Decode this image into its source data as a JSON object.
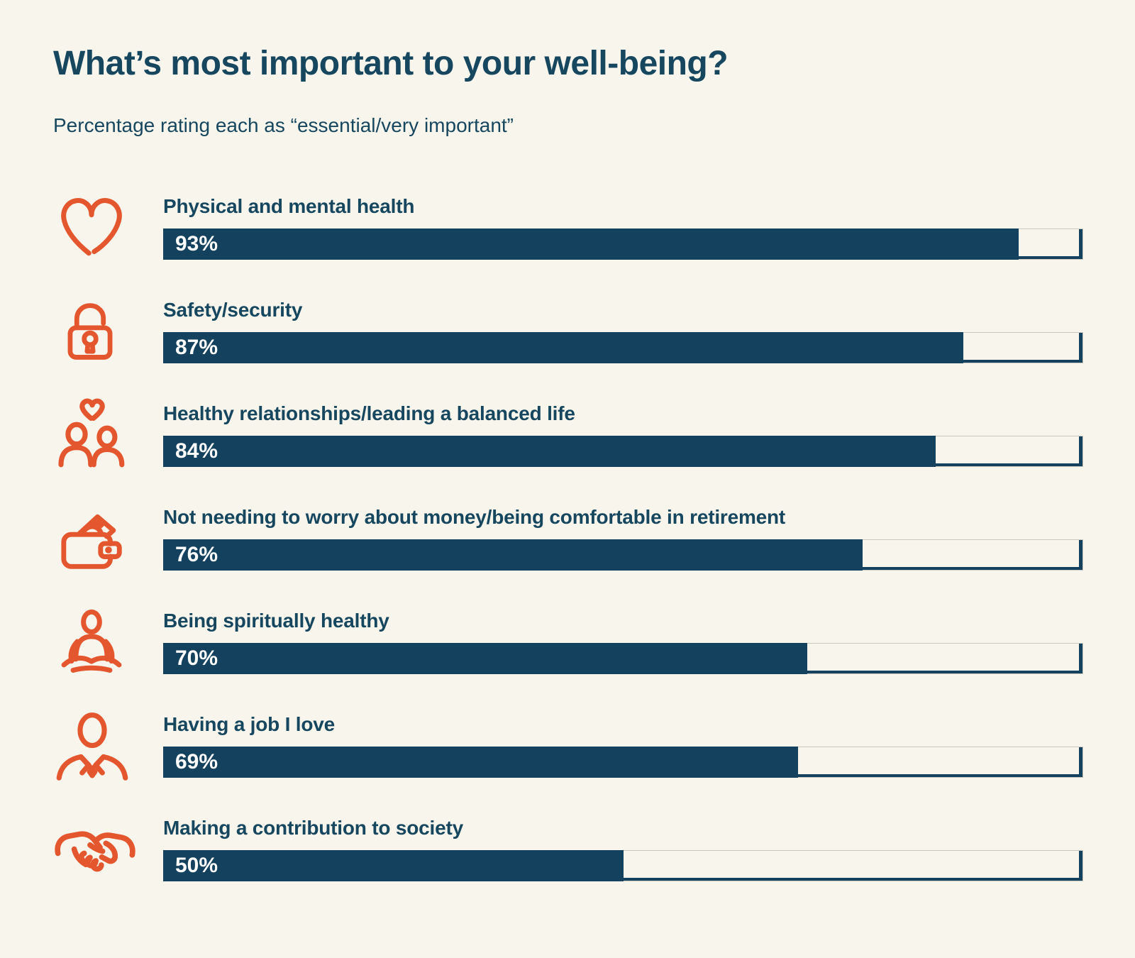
{
  "page": {
    "title": "What’s most important to your well-being?",
    "subtitle": "Percentage rating each as “essential/very important”"
  },
  "colors": {
    "background": "#F8F6EC",
    "bar": "#14415E",
    "text": "#17465F",
    "icon": "#E4572E",
    "value_text": "#FFFFFF"
  },
  "chart_data": {
    "type": "bar",
    "orientation": "horizontal",
    "title": "What’s most important to your well-being?",
    "subtitle": "Percentage rating each as “essential/very important”",
    "xlim": [
      0,
      100
    ],
    "grid": false,
    "legend": false,
    "categories": [
      "Physical and mental health",
      "Safety/security",
      "Healthy relationships/leading a balanced life",
      "Not needing to worry about money/being comfortable in retirement",
      "Being spiritually healthy",
      "Having a job I love",
      "Making a contribution to society"
    ],
    "values": [
      93,
      87,
      84,
      76,
      70,
      69,
      50
    ],
    "value_labels": [
      "93%",
      "87%",
      "84%",
      "76%",
      "70%",
      "69%",
      "50%"
    ],
    "icons": [
      "heart-icon",
      "padlock-icon",
      "couple-heart-icon",
      "wallet-money-icon",
      "meditation-icon",
      "businessperson-icon",
      "handshake-icon"
    ]
  }
}
